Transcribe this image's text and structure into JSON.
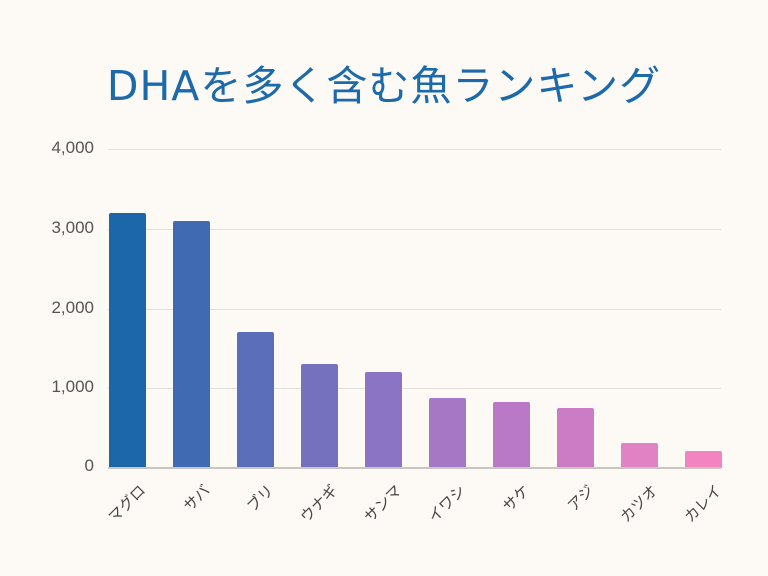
{
  "chart_data": {
    "type": "bar",
    "title": "DHAを多く含む魚ランキング",
    "xlabel": "",
    "ylabel": "",
    "ylim": [
      0,
      4000
    ],
    "yticks": [
      "0",
      "1,000",
      "2,000",
      "3,000",
      "4,000"
    ],
    "grid": true,
    "legend": null,
    "categories": [
      "マグロ",
      "サバ",
      "ブリ",
      "ウナギ",
      "サンマ",
      "イワシ",
      "サケ",
      "アジ",
      "カツオ",
      "カレイ"
    ],
    "values": [
      3200,
      3100,
      1700,
      1300,
      1200,
      880,
      830,
      750,
      310,
      210
    ],
    "colors": [
      "#1b67a9",
      "#406bb3",
      "#5b6eba",
      "#7571be",
      "#8c74c4",
      "#a577c5",
      "#ba79c6",
      "#cc7bc5",
      "#e182c5",
      "#f284c1"
    ]
  }
}
